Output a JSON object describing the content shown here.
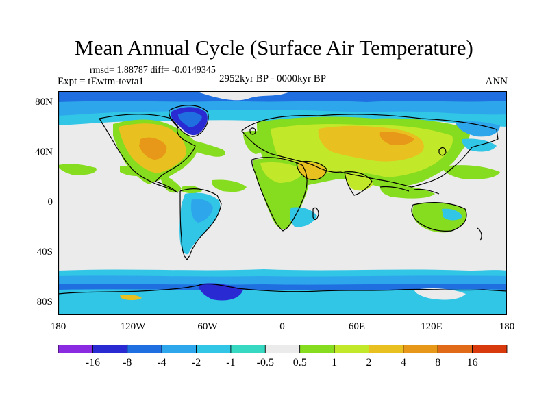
{
  "title": "Mean Annual Cycle (Surface Air Temperature)",
  "stats": "rmsd= 1.88787 diff= -0.0149345",
  "experiment": "Expt = tEwtm-tevta1",
  "period": "2952kyr BP - 0000kyr BP",
  "season": "ANN",
  "map": {
    "lon_range": [
      -180,
      180
    ],
    "lat_range": [
      -90,
      90
    ],
    "lat_labels": [
      "80N",
      "40N",
      "0",
      "40S",
      "80S"
    ],
    "lon_labels": [
      "180",
      "120W",
      "60W",
      "0",
      "60E",
      "120E",
      "180"
    ]
  },
  "colorbar": {
    "colors": [
      "#8a2be2",
      "#2a2ad2",
      "#1f6fe0",
      "#2ea6ec",
      "#31c5e6",
      "#37d8c2",
      "#ebebeb",
      "#86dc1e",
      "#c2e82a",
      "#e8c020",
      "#e89818",
      "#e06a18",
      "#d83a0e"
    ],
    "labels": [
      "-16",
      "-8",
      "-4",
      "-2",
      "-1",
      "-0.5",
      "0.5",
      "1",
      "2",
      "4",
      "8",
      "16"
    ]
  }
}
